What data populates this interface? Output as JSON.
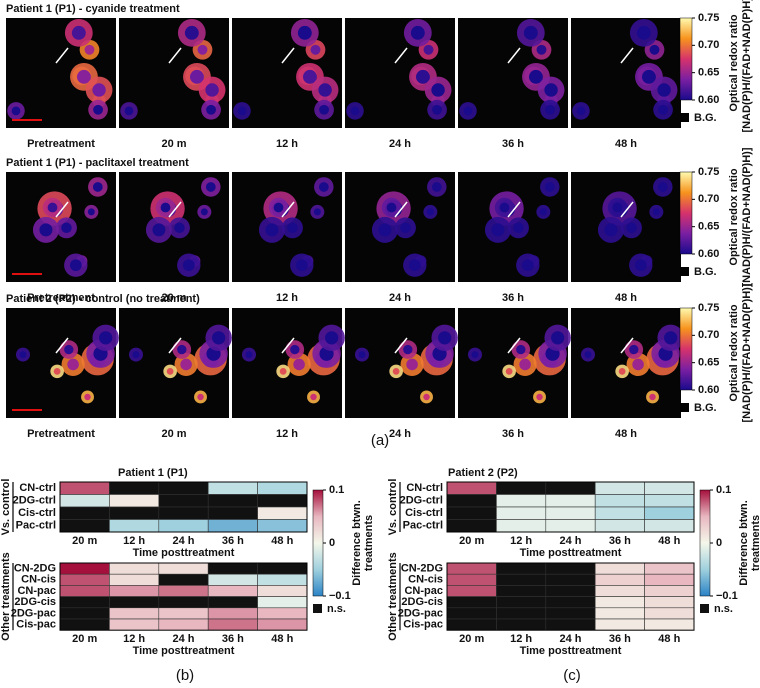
{
  "figure_a": {
    "caption": "(a)",
    "rows": [
      {
        "title": "Patient 1 (P1) - cyanide treatment",
        "labels": [
          "Pretreatment",
          "20 m",
          "12 h",
          "24 h",
          "36 h",
          "48 h"
        ]
      },
      {
        "title": "Patient 1 (P1) - paclitaxel treatment",
        "labels": [
          "Pretreatment",
          "20 m",
          "12 h",
          "24 h",
          "36 h",
          "48 h"
        ]
      },
      {
        "title": "Patient 2 (P2) - control (no treatment)",
        "labels": [
          "Pretreatment",
          "20 m",
          "12 h",
          "24 h",
          "36 h",
          "48 h"
        ]
      }
    ],
    "colorbar": {
      "label": [
        "Optical redox ratio",
        "[NAD(P)H/(FAD+NAD(P)H)]"
      ],
      "zlim": [
        0.6,
        0.75
      ],
      "ticks": [
        0.75,
        {
          "value": 0.7,
          "label": "0.70"
        },
        0.65,
        {
          "value": 0.6,
          "label": "0.60"
        }
      ],
      "background": "B.G.",
      "colormap": [
        "#1a0a8c",
        "#7b1fa2",
        "#d6336c",
        "#f7941d",
        "#fffbb0"
      ]
    }
  },
  "chart_data": [
    {
      "type": "heatmap",
      "title": "Patient 1 (P1)",
      "caption": "(b)",
      "groups": [
        {
          "label": "Vs. control",
          "rows": [
            "CN-ctrl",
            "2DG-ctrl",
            "Cis-ctrl",
            "Pac-ctrl"
          ],
          "categories": [
            "20 m",
            "12 h",
            "24 h",
            "36 h",
            "48 h"
          ],
          "x_label": "Time posttreatment",
          "values": [
            [
              0.08,
              null,
              null,
              -0.03,
              -0.04
            ],
            [
              -0.02,
              0.01,
              null,
              null,
              null
            ],
            [
              null,
              null,
              null,
              null,
              0.01
            ],
            [
              null,
              -0.04,
              -0.05,
              -0.07,
              -0.06
            ]
          ]
        },
        {
          "label": "Other treatments",
          "rows": [
            "CN-2DG",
            "CN-cis",
            "CN-pac",
            "2DG-cis",
            "2DG-pac",
            "Cis-pac"
          ],
          "categories": [
            "20 m",
            "12 h",
            "24 h",
            "36 h",
            "48 h"
          ],
          "x_label": "Time posttreatment",
          "values": [
            [
              0.1,
              0.02,
              0.02,
              null,
              null
            ],
            [
              0.08,
              0.02,
              null,
              -0.02,
              -0.03
            ],
            [
              0.08,
              0.06,
              0.07,
              0.05,
              0.02
            ],
            [
              null,
              null,
              null,
              null,
              -0.01
            ],
            [
              null,
              0.04,
              0.04,
              0.06,
              0.05
            ],
            [
              null,
              0.04,
              0.05,
              0.07,
              0.06
            ]
          ]
        }
      ],
      "colorbar": {
        "label": [
          "Difference btwn.",
          "treatments"
        ],
        "zlim": [
          -0.1,
          0.1
        ],
        "ticks": [
          0.1,
          0,
          {
            "value": -0.1,
            "label": "−0.1"
          }
        ],
        "not_significant": "n.s."
      },
      "colormap": [
        "#2b83c6",
        "#9fd0de",
        "#f4f7ea",
        "#e8b7c0",
        "#a50f3c"
      ],
      "null_color": "#111111"
    },
    {
      "type": "heatmap",
      "title": "Patient 2 (P2)",
      "caption": "(c)",
      "groups": [
        {
          "label": "Vs. control",
          "rows": [
            "CN-ctrl",
            "2DG-ctrl",
            "Cis-ctrl",
            "Pac-ctrl"
          ],
          "categories": [
            "20 m",
            "12 h",
            "24 h",
            "36 h",
            "48 h"
          ],
          "x_label": "Time posttreatment",
          "values": [
            [
              0.08,
              null,
              null,
              -0.02,
              -0.02
            ],
            [
              null,
              -0.01,
              -0.01,
              -0.03,
              -0.03
            ],
            [
              null,
              -0.01,
              -0.01,
              -0.03,
              -0.05
            ],
            [
              null,
              -0.01,
              -0.01,
              -0.02,
              -0.02
            ]
          ]
        },
        {
          "label": "Other treatments",
          "rows": [
            "CN-2DG",
            "CN-cis",
            "CN-pac",
            "2DG-cis",
            "2DG-pac",
            "Cis-pac"
          ],
          "categories": [
            "20 m",
            "12 h",
            "24 h",
            "36 h",
            "48 h"
          ],
          "x_label": "Time posttreatment",
          "values": [
            [
              0.08,
              null,
              null,
              0.02,
              0.04
            ],
            [
              0.08,
              null,
              null,
              0.03,
              0.05
            ],
            [
              0.08,
              null,
              null,
              0.02,
              0.03
            ],
            [
              null,
              null,
              null,
              0.01,
              0.02
            ],
            [
              null,
              null,
              null,
              0.01,
              0.02
            ],
            [
              null,
              null,
              null,
              0.01,
              0.01
            ]
          ]
        }
      ],
      "colorbar": {
        "label": [
          "Difference btwn.",
          "treatments"
        ],
        "zlim": [
          -0.1,
          0.1
        ],
        "ticks": [
          0.1,
          0,
          {
            "value": -0.1,
            "label": "−0.1"
          }
        ],
        "not_significant": "n.s."
      },
      "colormap": [
        "#2b83c6",
        "#9fd0de",
        "#f4f7ea",
        "#e8b7c0",
        "#a50f3c"
      ],
      "null_color": "#111111"
    }
  ]
}
